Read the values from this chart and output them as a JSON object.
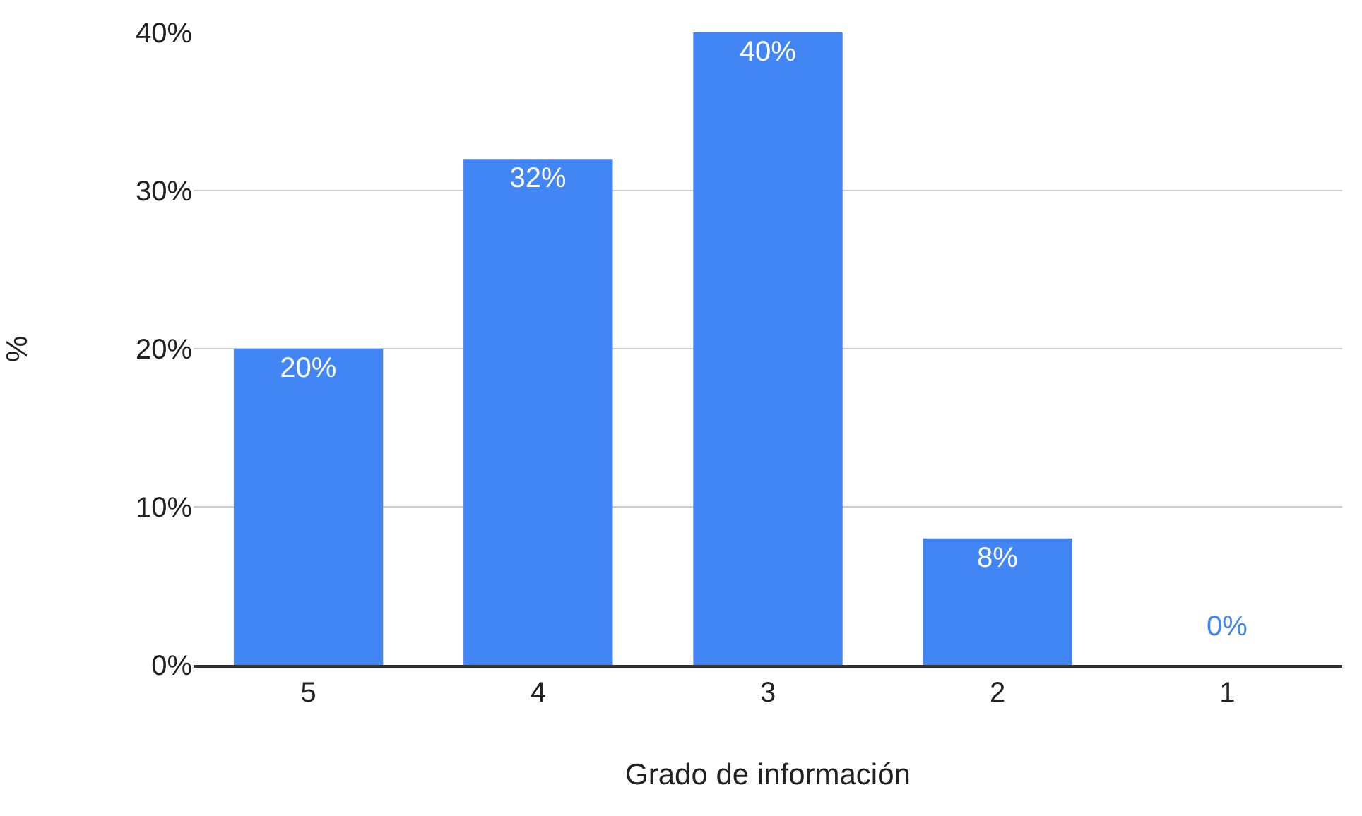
{
  "chart_data": {
    "type": "bar",
    "xlabel": "Grado de información",
    "ylabel": "%",
    "categories": [
      "5",
      "4",
      "3",
      "2",
      "1"
    ],
    "values": [
      20,
      32,
      40,
      8,
      0
    ],
    "value_labels": [
      "20%",
      "32%",
      "40%",
      "8%",
      "0%"
    ],
    "color": "#4285f4",
    "ylim": [
      0,
      40
    ],
    "yticks": [
      {
        "value": 0,
        "label": "0%"
      },
      {
        "value": 10,
        "label": "10%"
      },
      {
        "value": 20,
        "label": "20%"
      },
      {
        "value": 30,
        "label": "30%"
      },
      {
        "value": 40,
        "label": "40%"
      }
    ],
    "grid": "y",
    "legend": false
  }
}
